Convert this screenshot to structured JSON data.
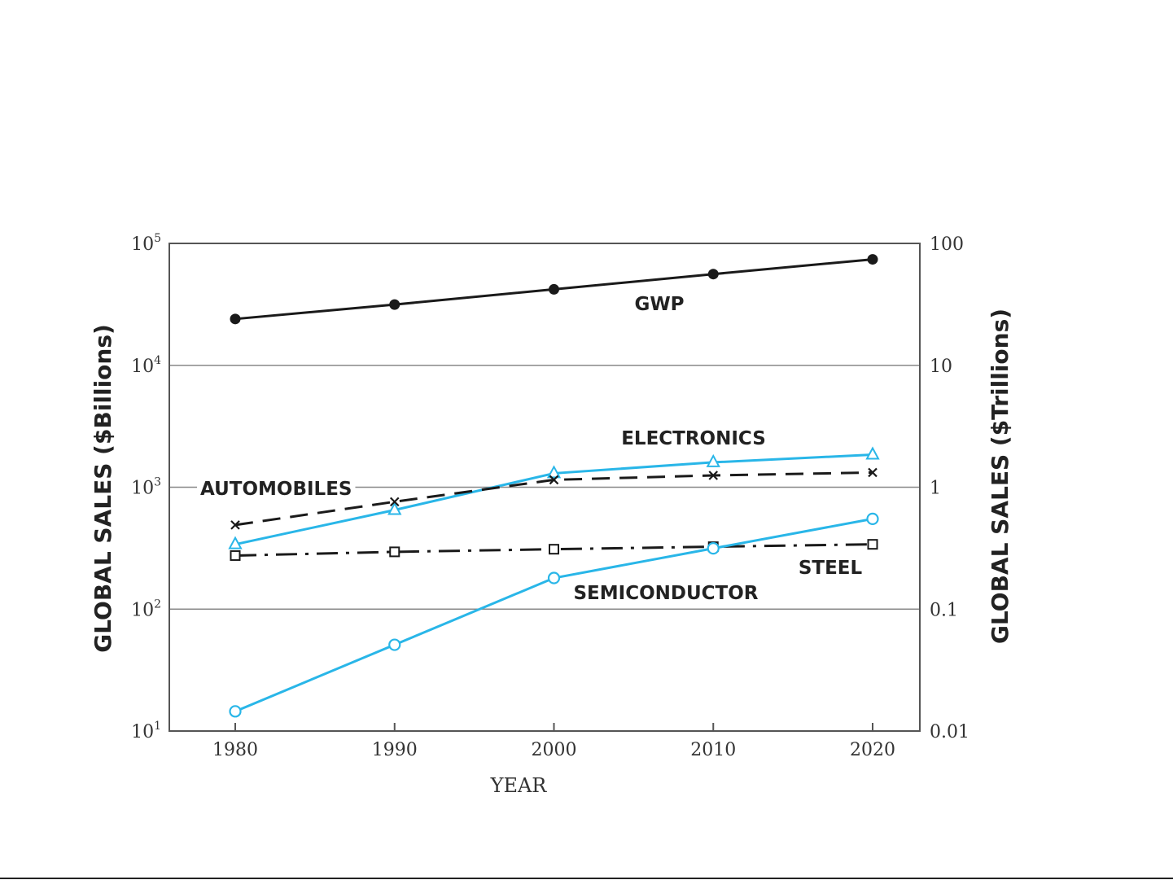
{
  "chart_data": {
    "type": "line",
    "xlabel": "YEAR",
    "ylabel": "GLOBAL SALES ($Billions)",
    "ylabel_right": "GLOBAL SALES ($Trillions)",
    "x": [
      1980,
      1990,
      2000,
      2010,
      2020
    ],
    "x_ticks": [
      "1980",
      "1990",
      "2000",
      "2010",
      "2020"
    ],
    "y_scale": "log",
    "ylim": [
      10,
      100000
    ],
    "y_ticks": [
      {
        "value": 10,
        "base": "10",
        "exp": "1"
      },
      {
        "value": 100,
        "base": "10",
        "exp": "2"
      },
      {
        "value": 1000,
        "base": "10",
        "exp": "3"
      },
      {
        "value": 10000,
        "base": "10",
        "exp": "4"
      },
      {
        "value": 100000,
        "base": "10",
        "exp": "5"
      }
    ],
    "y_right_ticks": [
      {
        "value": 10,
        "label": "0.01"
      },
      {
        "value": 100,
        "label": "0.1"
      },
      {
        "value": 1000,
        "label": "1"
      },
      {
        "value": 10000,
        "label": "10"
      },
      {
        "value": 100000,
        "label": "100"
      }
    ],
    "grid": "horizontal at decades",
    "legend": "none (inline labels)",
    "series": [
      {
        "name": "GWP",
        "values": [
          24000,
          31500,
          42000,
          56000,
          74000
        ],
        "color": "#1a1a1a",
        "dash": "solid",
        "marker": "filled-circle"
      },
      {
        "name": "ELECTRONICS",
        "values": [
          340,
          650,
          1300,
          1600,
          1850
        ],
        "color": "#29b6e8",
        "dash": "solid",
        "marker": "open-triangle"
      },
      {
        "name": "AUTOMOBILES",
        "values": [
          490,
          760,
          1150,
          1250,
          1320
        ],
        "color": "#1a1a1a",
        "dash": "dashed",
        "marker": "x"
      },
      {
        "name": "STEEL",
        "values": [
          275,
          295,
          310,
          325,
          340
        ],
        "color": "#1a1a1a",
        "dash": "dash-dot",
        "marker": "open-square"
      },
      {
        "name": "SEMICONDUCTOR",
        "values": [
          14.5,
          51,
          180,
          315,
          550
        ],
        "color": "#29b6e8",
        "dash": "solid",
        "marker": "open-circle"
      }
    ]
  }
}
